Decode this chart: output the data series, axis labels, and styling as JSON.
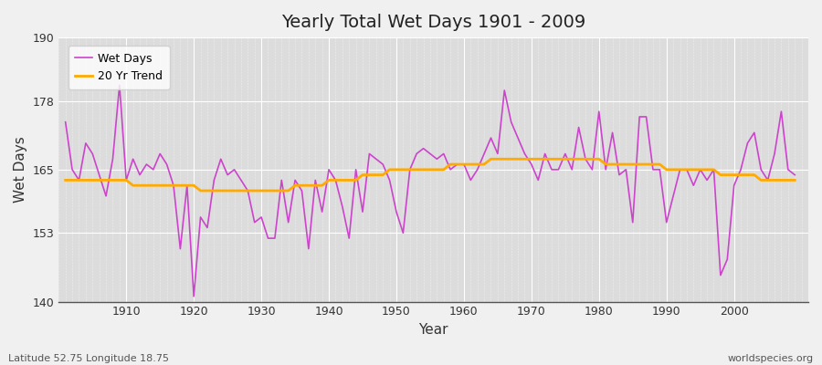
{
  "title": "Yearly Total Wet Days 1901 - 2009",
  "xlabel": "Year",
  "ylabel": "Wet Days",
  "footnote_left": "Latitude 52.75 Longitude 18.75",
  "footnote_right": "worldspecies.org",
  "ylim": [
    140,
    190
  ],
  "yticks": [
    140,
    153,
    165,
    178,
    190
  ],
  "bg_color": "#f0f0f0",
  "plot_bg_color": "#dcdcdc",
  "wet_days_color": "#cc44cc",
  "trend_color": "#ffaa00",
  "legend_wet": "Wet Days",
  "legend_trend": "20 Yr Trend",
  "years": [
    1901,
    1902,
    1903,
    1904,
    1905,
    1906,
    1907,
    1908,
    1909,
    1910,
    1911,
    1912,
    1913,
    1914,
    1915,
    1916,
    1917,
    1918,
    1919,
    1920,
    1921,
    1922,
    1923,
    1924,
    1925,
    1926,
    1927,
    1928,
    1929,
    1930,
    1931,
    1932,
    1933,
    1934,
    1935,
    1936,
    1937,
    1938,
    1939,
    1940,
    1941,
    1942,
    1943,
    1944,
    1945,
    1946,
    1947,
    1948,
    1949,
    1950,
    1951,
    1952,
    1953,
    1954,
    1955,
    1956,
    1957,
    1958,
    1959,
    1960,
    1961,
    1962,
    1963,
    1964,
    1965,
    1966,
    1967,
    1968,
    1969,
    1970,
    1971,
    1972,
    1973,
    1974,
    1975,
    1976,
    1977,
    1978,
    1979,
    1980,
    1981,
    1982,
    1983,
    1984,
    1985,
    1986,
    1987,
    1988,
    1989,
    1990,
    1991,
    1992,
    1993,
    1994,
    1995,
    1996,
    1997,
    1998,
    1999,
    2000,
    2001,
    2002,
    2003,
    2004,
    2005,
    2006,
    2007,
    2008,
    2009
  ],
  "wet_days": [
    174,
    165,
    163,
    170,
    168,
    164,
    160,
    167,
    181,
    163,
    167,
    164,
    166,
    165,
    168,
    166,
    162,
    150,
    162,
    141,
    156,
    154,
    163,
    167,
    164,
    165,
    163,
    161,
    155,
    156,
    152,
    152,
    163,
    155,
    163,
    161,
    150,
    163,
    157,
    165,
    163,
    158,
    152,
    165,
    157,
    168,
    167,
    166,
    163,
    157,
    153,
    165,
    168,
    169,
    168,
    167,
    168,
    165,
    166,
    166,
    163,
    165,
    168,
    171,
    168,
    180,
    174,
    171,
    168,
    166,
    163,
    168,
    165,
    165,
    168,
    165,
    173,
    167,
    165,
    176,
    165,
    172,
    164,
    165,
    155,
    175,
    175,
    165,
    165,
    155,
    160,
    165,
    165,
    162,
    165,
    163,
    165,
    145,
    148,
    162,
    165,
    170,
    172,
    165,
    163,
    168,
    176,
    165,
    164
  ],
  "trend": [
    163,
    163,
    163,
    163,
    163,
    163,
    163,
    163,
    163,
    163,
    162,
    162,
    162,
    162,
    162,
    162,
    162,
    162,
    162,
    162,
    161,
    161,
    161,
    161,
    161,
    161,
    161,
    161,
    161,
    161,
    161,
    161,
    161,
    161,
    162,
    162,
    162,
    162,
    162,
    163,
    163,
    163,
    163,
    163,
    164,
    164,
    164,
    164,
    165,
    165,
    165,
    165,
    165,
    165,
    165,
    165,
    165,
    166,
    166,
    166,
    166,
    166,
    166,
    167,
    167,
    167,
    167,
    167,
    167,
    167,
    167,
    167,
    167,
    167,
    167,
    167,
    167,
    167,
    167,
    167,
    166,
    166,
    166,
    166,
    166,
    166,
    166,
    166,
    166,
    165,
    165,
    165,
    165,
    165,
    165,
    165,
    165,
    164,
    164,
    164,
    164,
    164,
    164,
    163,
    163,
    163,
    163,
    163,
    163
  ]
}
